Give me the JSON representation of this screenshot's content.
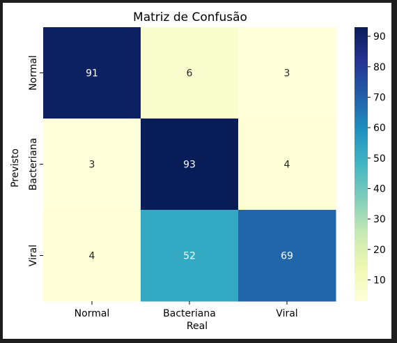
{
  "chart_data": {
    "type": "heatmap",
    "title": "Matriz de Confusão",
    "xlabel": "Real",
    "ylabel": "Previsto",
    "x_categories": [
      "Normal",
      "Bacteriana",
      "Viral"
    ],
    "y_categories": [
      "Normal",
      "Bacteriana",
      "Viral"
    ],
    "matrix": [
      [
        91,
        6,
        3
      ],
      [
        3,
        93,
        4
      ],
      [
        4,
        52,
        69
      ]
    ],
    "colormap": "YlGnBu",
    "vmin": 3,
    "vmax": 93,
    "colorbar_ticks": [
      10,
      20,
      30,
      40,
      50,
      60,
      70,
      80,
      90
    ]
  }
}
